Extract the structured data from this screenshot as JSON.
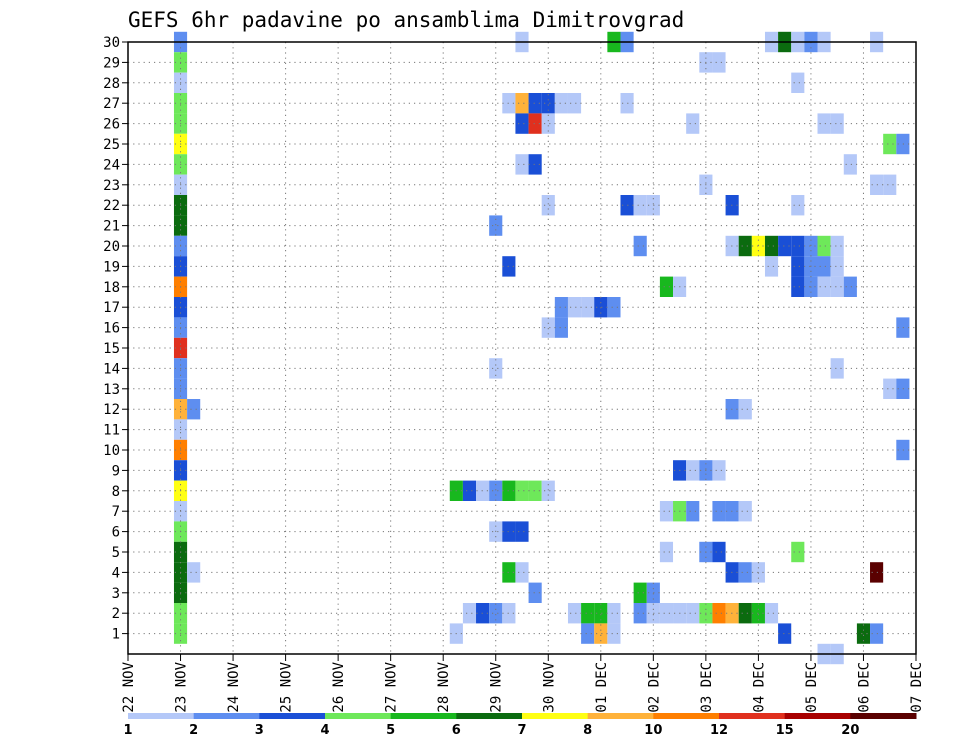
{
  "chart_data": {
    "type": "heatmap",
    "title": "GEFS 6hr padavine po ansamblima Dimitrovgrad",
    "x_tick_labels": [
      "22 NOV",
      "23 NOV",
      "24 NOV",
      "25 NOV",
      "26 NOV",
      "27 NOV",
      "28 NOV",
      "29 NOV",
      "30 NOV",
      "01 DEC",
      "02 DEC",
      "03 DEC",
      "04 DEC",
      "05 DEC",
      "06 DEC",
      "07 DEC"
    ],
    "x_range_days": [
      22,
      37
    ],
    "x_step_hours": 6,
    "y_tick_labels": [
      "1",
      "2",
      "3",
      "4",
      "5",
      "6",
      "7",
      "8",
      "9",
      "10",
      "11",
      "12",
      "13",
      "14",
      "15",
      "16",
      "17",
      "18",
      "19",
      "20",
      "21",
      "22",
      "23",
      "24",
      "25",
      "26",
      "27",
      "28",
      "29",
      "30"
    ],
    "y_range": [
      0,
      30
    ],
    "grid": true,
    "colorbar": {
      "labels": [
        "1",
        "2",
        "3",
        "4",
        "5",
        "6",
        "7",
        "8",
        "10",
        "12",
        "15",
        "20"
      ],
      "colors": [
        "#b4c8f8",
        "#5e8ef0",
        "#1a4fd6",
        "#6ee85a",
        "#18b81e",
        "#0b6b0f",
        "#ffff14",
        "#ffb23a",
        "#ff7f00",
        "#e0301e",
        "#a80000",
        "#5a0000"
      ]
    },
    "cells": [
      [
        23.0,
        30,
        1
      ],
      [
        23.0,
        29,
        3
      ],
      [
        23.0,
        28,
        0
      ],
      [
        23.0,
        27,
        3
      ],
      [
        23.0,
        26,
        3
      ],
      [
        23.0,
        25,
        6
      ],
      [
        23.0,
        24,
        3
      ],
      [
        23.0,
        23,
        0
      ],
      [
        23.0,
        22,
        5
      ],
      [
        23.0,
        21,
        5
      ],
      [
        23.0,
        20,
        1
      ],
      [
        23.0,
        19,
        2
      ],
      [
        23.0,
        18,
        8
      ],
      [
        23.0,
        17,
        2
      ],
      [
        23.0,
        16,
        1
      ],
      [
        23.0,
        15,
        9
      ],
      [
        23.0,
        14,
        1
      ],
      [
        23.0,
        13,
        1
      ],
      [
        23.0,
        12,
        7
      ],
      [
        23.0,
        11,
        0
      ],
      [
        23.0,
        10,
        8
      ],
      [
        23.0,
        9,
        2
      ],
      [
        23.0,
        8,
        6
      ],
      [
        23.0,
        7,
        0
      ],
      [
        23.0,
        6,
        3
      ],
      [
        23.0,
        5,
        5
      ],
      [
        23.0,
        4,
        5
      ],
      [
        23.0,
        3,
        5
      ],
      [
        23.0,
        2,
        3
      ],
      [
        23.0,
        1,
        3
      ],
      [
        23.25,
        12,
        1
      ],
      [
        23.25,
        4,
        0
      ],
      [
        28.25,
        8,
        4
      ],
      [
        28.25,
        1,
        0
      ],
      [
        28.5,
        8,
        2
      ],
      [
        28.5,
        2,
        0
      ],
      [
        28.75,
        8,
        0
      ],
      [
        28.75,
        2,
        2
      ],
      [
        29.0,
        21,
        1
      ],
      [
        29.0,
        14,
        0
      ],
      [
        29.0,
        8,
        1
      ],
      [
        29.0,
        6,
        0
      ],
      [
        29.0,
        2,
        1
      ],
      [
        29.25,
        27,
        0
      ],
      [
        29.25,
        19,
        2
      ],
      [
        29.25,
        8,
        4
      ],
      [
        29.25,
        6,
        2
      ],
      [
        29.25,
        4,
        4
      ],
      [
        29.25,
        2,
        0
      ],
      [
        29.5,
        30,
        0
      ],
      [
        29.5,
        27,
        7
      ],
      [
        29.5,
        26,
        2
      ],
      [
        29.5,
        24,
        0
      ],
      [
        29.5,
        8,
        3
      ],
      [
        29.5,
        6,
        2
      ],
      [
        29.5,
        4,
        0
      ],
      [
        29.75,
        27,
        2
      ],
      [
        29.75,
        26,
        9
      ],
      [
        29.75,
        24,
        2
      ],
      [
        29.75,
        8,
        3
      ],
      [
        29.75,
        3,
        1
      ],
      [
        30.0,
        27,
        2
      ],
      [
        30.0,
        26,
        0
      ],
      [
        30.0,
        22,
        0
      ],
      [
        30.0,
        16,
        0
      ],
      [
        30.0,
        8,
        0
      ],
      [
        30.25,
        27,
        0
      ],
      [
        30.25,
        17,
        1
      ],
      [
        30.25,
        16,
        1
      ],
      [
        30.5,
        27,
        0
      ],
      [
        30.5,
        17,
        0
      ],
      [
        30.5,
        2,
        0
      ],
      [
        30.75,
        17,
        0
      ],
      [
        30.75,
        2,
        4
      ],
      [
        30.75,
        1,
        1
      ],
      [
        31.0,
        17,
        2
      ],
      [
        31.0,
        2,
        4
      ],
      [
        31.0,
        1,
        7
      ],
      [
        31.25,
        30,
        4
      ],
      [
        31.25,
        17,
        1
      ],
      [
        31.25,
        2,
        0
      ],
      [
        31.25,
        1,
        0
      ],
      [
        31.5,
        30,
        1
      ],
      [
        31.5,
        27,
        0
      ],
      [
        31.5,
        22,
        2
      ],
      [
        31.75,
        22,
        0
      ],
      [
        31.75,
        20,
        1
      ],
      [
        31.75,
        3,
        4
      ],
      [
        31.75,
        2,
        1
      ],
      [
        32.0,
        22,
        0
      ],
      [
        32.0,
        3,
        1
      ],
      [
        32.0,
        2,
        0
      ],
      [
        32.25,
        18,
        4
      ],
      [
        32.25,
        7,
        0
      ],
      [
        32.25,
        5,
        0
      ],
      [
        32.25,
        2,
        0
      ],
      [
        32.5,
        18,
        0
      ],
      [
        32.5,
        9,
        2
      ],
      [
        32.5,
        7,
        3
      ],
      [
        32.5,
        2,
        0
      ],
      [
        32.75,
        26,
        0
      ],
      [
        32.75,
        9,
        0
      ],
      [
        32.75,
        7,
        1
      ],
      [
        32.75,
        2,
        0
      ],
      [
        33.0,
        29,
        0
      ],
      [
        33.0,
        23,
        0
      ],
      [
        33.0,
        9,
        1
      ],
      [
        33.0,
        5,
        1
      ],
      [
        33.0,
        2,
        3
      ],
      [
        33.25,
        29,
        0
      ],
      [
        33.25,
        9,
        0
      ],
      [
        33.25,
        7,
        1
      ],
      [
        33.25,
        5,
        2
      ],
      [
        33.25,
        2,
        8
      ],
      [
        33.5,
        22,
        2
      ],
      [
        33.5,
        20,
        0
      ],
      [
        33.5,
        12,
        1
      ],
      [
        33.5,
        7,
        1
      ],
      [
        33.5,
        4,
        2
      ],
      [
        33.5,
        2,
        7
      ],
      [
        33.75,
        20,
        5
      ],
      [
        33.75,
        12,
        0
      ],
      [
        33.75,
        7,
        0
      ],
      [
        33.75,
        4,
        1
      ],
      [
        33.75,
        2,
        5
      ],
      [
        34.0,
        20,
        6
      ],
      [
        34.0,
        4,
        0
      ],
      [
        34.0,
        2,
        4
      ],
      [
        34.25,
        30,
        0
      ],
      [
        34.25,
        20,
        5
      ],
      [
        34.25,
        19,
        0
      ],
      [
        34.25,
        2,
        0
      ],
      [
        34.5,
        30,
        5
      ],
      [
        34.5,
        20,
        2
      ],
      [
        34.5,
        1,
        2
      ],
      [
        34.75,
        30,
        0
      ],
      [
        34.75,
        28,
        0
      ],
      [
        34.75,
        22,
        0
      ],
      [
        34.75,
        20,
        2
      ],
      [
        34.75,
        19,
        2
      ],
      [
        34.75,
        18,
        2
      ],
      [
        34.75,
        5,
        3
      ],
      [
        35.0,
        30,
        1
      ],
      [
        35.0,
        20,
        1
      ],
      [
        35.0,
        19,
        1
      ],
      [
        35.0,
        18,
        1
      ],
      [
        35.25,
        30,
        0
      ],
      [
        35.25,
        26,
        0
      ],
      [
        35.25,
        20,
        3
      ],
      [
        35.25,
        19,
        1
      ],
      [
        35.25,
        18,
        0
      ],
      [
        35.25,
        0,
        0
      ],
      [
        35.5,
        26,
        0
      ],
      [
        35.5,
        20,
        0
      ],
      [
        35.5,
        19,
        0
      ],
      [
        35.5,
        18,
        0
      ],
      [
        35.5,
        14,
        0
      ],
      [
        35.5,
        0,
        0
      ],
      [
        35.75,
        24,
        0
      ],
      [
        35.75,
        18,
        1
      ],
      [
        36.0,
        1,
        5
      ],
      [
        36.25,
        30,
        0
      ],
      [
        36.25,
        23,
        0
      ],
      [
        36.25,
        4,
        11
      ],
      [
        36.25,
        1,
        1
      ],
      [
        36.5,
        25,
        3
      ],
      [
        36.5,
        23,
        0
      ],
      [
        36.5,
        13,
        0
      ],
      [
        36.75,
        25,
        1
      ],
      [
        36.75,
        16,
        1
      ],
      [
        36.75,
        13,
        1
      ],
      [
        36.75,
        10,
        1
      ]
    ]
  }
}
